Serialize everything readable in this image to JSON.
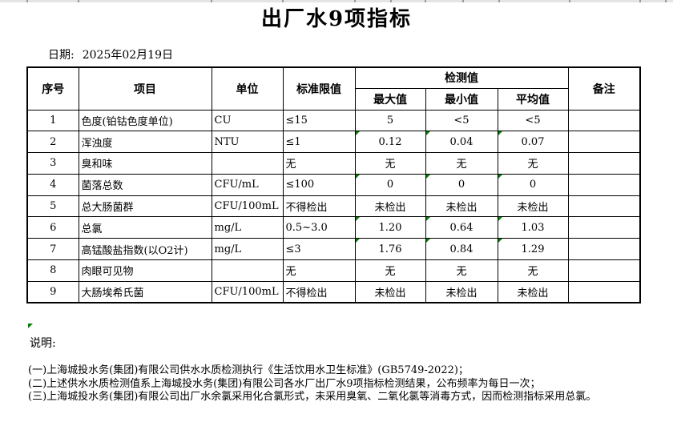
{
  "title": "出厂水9项指标",
  "date": {
    "label": "日期:",
    "value": "2025年02月19日"
  },
  "table": {
    "headers": {
      "no": "序号",
      "item": "项目",
      "unit": "单位",
      "limit": "标准限值",
      "detection": "检测值",
      "max": "最大值",
      "min": "最小值",
      "avg": "平均值",
      "remark": "备注"
    },
    "rows": [
      {
        "no": "1",
        "item": "色度(铂钴色度单位)",
        "unit": "CU",
        "limit": "≤15",
        "max": "5",
        "min": "<5",
        "avg": "<5",
        "remark": "",
        "flagged": false
      },
      {
        "no": "2",
        "item": "浑浊度",
        "unit": "NTU",
        "limit": "≤1",
        "max": "0.12",
        "min": "0.04",
        "avg": "0.07",
        "remark": "",
        "flagged": true
      },
      {
        "no": "3",
        "item": "臭和味",
        "unit": "",
        "limit": "无",
        "max": "无",
        "min": "无",
        "avg": "无",
        "remark": "",
        "flagged": false
      },
      {
        "no": "4",
        "item": "菌落总数",
        "unit": "CFU/mL",
        "limit": "≤100",
        "max": "0",
        "min": "0",
        "avg": "0",
        "remark": "",
        "flagged": true
      },
      {
        "no": "5",
        "item": "总大肠菌群",
        "unit": "CFU/100mL",
        "limit": "不得检出",
        "max": "未检出",
        "min": "未检出",
        "avg": "未检出",
        "remark": "",
        "flagged": false
      },
      {
        "no": "6",
        "item": "总氯",
        "unit": "mg/L",
        "limit": "0.5~3.0",
        "max": "1.20",
        "min": "0.64",
        "avg": "1.03",
        "remark": "",
        "flagged": true
      },
      {
        "no": "7",
        "item": "高锰酸盐指数(以O2计)",
        "unit": "mg/L",
        "limit": "≤3",
        "max": "1.76",
        "min": "0.84",
        "avg": "1.29",
        "remark": "",
        "flagged": true
      },
      {
        "no": "8",
        "item": "肉眼可见物",
        "unit": "",
        "limit": "无",
        "max": "无",
        "min": "无",
        "avg": "无",
        "remark": "",
        "flagged": false
      },
      {
        "no": "9",
        "item": "大肠埃希氏菌",
        "unit": "CFU/100mL",
        "limit": "不得检出",
        "max": "未检出",
        "min": "未检出",
        "avg": "未检出",
        "remark": "",
        "flagged": false
      }
    ]
  },
  "notes": {
    "label": "说明:",
    "items": [
      "(一)上海城投水务(集团)有限公司供水水质检测执行《生活饮用水卫生标准》(GB5749-2022)；",
      "(二)上述供水水质检测值系上海城投水务(集团)有限公司各水厂出厂水9项指标检测结果，公布频率为每日一次；",
      "(三)上海城投水务(集团)有限公司出厂水余氯采用化合氯形式，未采用臭氧、二氧化氯等消毒方式，因而检测指标采用总氯。"
    ]
  },
  "colors": {
    "comment_marker_green": "#008000",
    "table_border": "#000000"
  }
}
